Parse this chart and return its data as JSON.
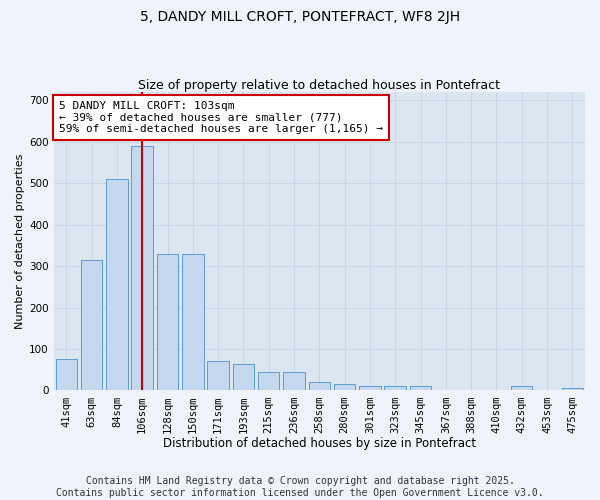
{
  "title1": "5, DANDY MILL CROFT, PONTEFRACT, WF8 2JH",
  "title2": "Size of property relative to detached houses in Pontefract",
  "xlabel": "Distribution of detached houses by size in Pontefract",
  "ylabel": "Number of detached properties",
  "categories": [
    "41sqm",
    "63sqm",
    "84sqm",
    "106sqm",
    "128sqm",
    "150sqm",
    "171sqm",
    "193sqm",
    "215sqm",
    "236sqm",
    "258sqm",
    "280sqm",
    "301sqm",
    "323sqm",
    "345sqm",
    "367sqm",
    "388sqm",
    "410sqm",
    "432sqm",
    "453sqm",
    "475sqm"
  ],
  "values": [
    75,
    315,
    510,
    590,
    330,
    330,
    70,
    65,
    45,
    45,
    20,
    15,
    10,
    10,
    10,
    0,
    0,
    0,
    10,
    0,
    5
  ],
  "bar_color": "#c5d8f0",
  "bar_edge_color": "#5b9bd5",
  "vline_x": 3,
  "vline_color": "#cc0000",
  "annotation_text": "5 DANDY MILL CROFT: 103sqm\n← 39% of detached houses are smaller (777)\n59% of semi-detached houses are larger (1,165) →",
  "annotation_box_color": "#ffffff",
  "annotation_box_edge": "#cc0000",
  "ylim": [
    0,
    720
  ],
  "yticks": [
    0,
    100,
    200,
    300,
    400,
    500,
    600,
    700
  ],
  "grid_color": "#c8d4e3",
  "background_color": "#dce6f0",
  "footer_text": "Contains HM Land Registry data © Crown copyright and database right 2025.\nContains public sector information licensed under the Open Government Licence v3.0.",
  "fig_facecolor": "#f0f4fa",
  "title1_fontsize": 10,
  "title2_fontsize": 9,
  "xlabel_fontsize": 8.5,
  "ylabel_fontsize": 8,
  "tick_fontsize": 7.5,
  "annotation_fontsize": 8,
  "footer_fontsize": 7
}
